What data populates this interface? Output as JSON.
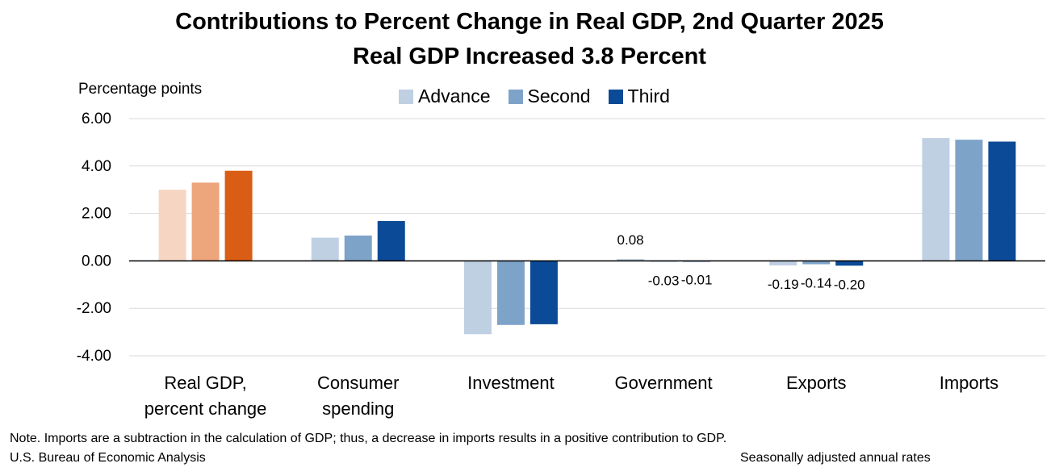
{
  "chart_data": {
    "type": "bar",
    "title": "Contributions to Percent Change in Real GDP, 2nd Quarter 2025",
    "subtitle": "Real GDP Increased 3.8 Percent",
    "ylabel": "Percentage points",
    "ylim": [
      -4,
      6
    ],
    "yticks": [
      "6.00",
      "4.00",
      "2.00",
      "0.00",
      "-2.00",
      "-4.00"
    ],
    "grid": true,
    "legend_position": "top-center",
    "categories": [
      [
        "Real GDP,",
        "percent change"
      ],
      [
        "Consumer",
        "spending"
      ],
      [
        "Investment"
      ],
      [
        "Government"
      ],
      [
        "Exports"
      ],
      [
        "Imports"
      ]
    ],
    "series": [
      {
        "name": "Advance",
        "values": [
          3.0,
          0.98,
          -3.09,
          0.08,
          -0.19,
          5.18
        ]
      },
      {
        "name": "Second",
        "values": [
          3.3,
          1.07,
          -2.7,
          -0.03,
          -0.14,
          5.11
        ]
      },
      {
        "name": "Third",
        "values": [
          3.8,
          1.68,
          -2.67,
          -0.01,
          -0.2,
          5.03
        ]
      }
    ],
    "data_labels": [
      {
        "category": 3,
        "series": 0,
        "text": "0.08"
      },
      {
        "category": 3,
        "series": 1,
        "text": "-0.03"
      },
      {
        "category": 3,
        "series": 2,
        "text": "-0.01"
      },
      {
        "category": 4,
        "series": 0,
        "text": "-0.19"
      },
      {
        "category": 4,
        "series": 1,
        "text": "-0.14"
      },
      {
        "category": 4,
        "series": 2,
        "text": "-0.20"
      }
    ],
    "colors": {
      "series": [
        "#bfd0e3",
        "#7ea3c9",
        "#0b4a96"
      ],
      "highlight_series": [
        "#f6d5c2",
        "#eda57c",
        "#d95d15"
      ],
      "grid": "#d9d9d9",
      "zero_line": "#000000"
    }
  },
  "notes": {
    "note": "Note. Imports are a subtraction in the calculation of GDP; thus, a decrease in imports results in a positive contribution to GDP.",
    "source": "U.S. Bureau of Economic Analysis",
    "adjustment": "Seasonally adjusted annual rates"
  }
}
